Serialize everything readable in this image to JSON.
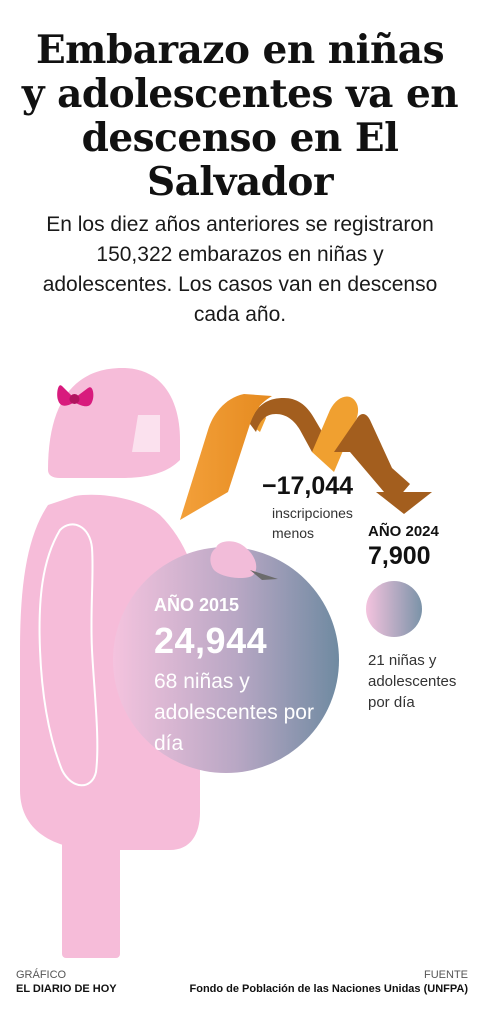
{
  "header": {
    "title": "Embarazo en niñas y adolescentes va en descenso en El Salvador",
    "subtitle": "En los diez años anteriores se registraron 150,322 embarazos en niñas y adolescentes. Los casos van en descenso cada año."
  },
  "change": {
    "value": "−17,044",
    "label": "inscripciones menos"
  },
  "year_2024": {
    "label": "AÑO 2024",
    "value": "7,900",
    "description": "21 niñas y adolescentes por día"
  },
  "year_2015": {
    "label": "AÑO 2015",
    "value": "24,944",
    "description": "68 niñas y adolescentes por día"
  },
  "footer": {
    "credit_label": "GRÁFICO",
    "credit_value": "EL DIARIO DE HOY",
    "source_label": "FUENTE",
    "source_value": "Fondo de Población de las Naciones Unidas (UNFPA)"
  },
  "colors": {
    "figure_pink": "#f6bcd9",
    "bow_magenta": "#d81b7d",
    "arrow_orange": "#f0a030",
    "arrow_brown": "#9a5a1c",
    "circle_pink": "#f2bfdc",
    "circle_slate": "#6f8aa1"
  },
  "icons": [
    "girl-silhouette-icon",
    "bow-icon",
    "zigzag-arrow-icon"
  ]
}
